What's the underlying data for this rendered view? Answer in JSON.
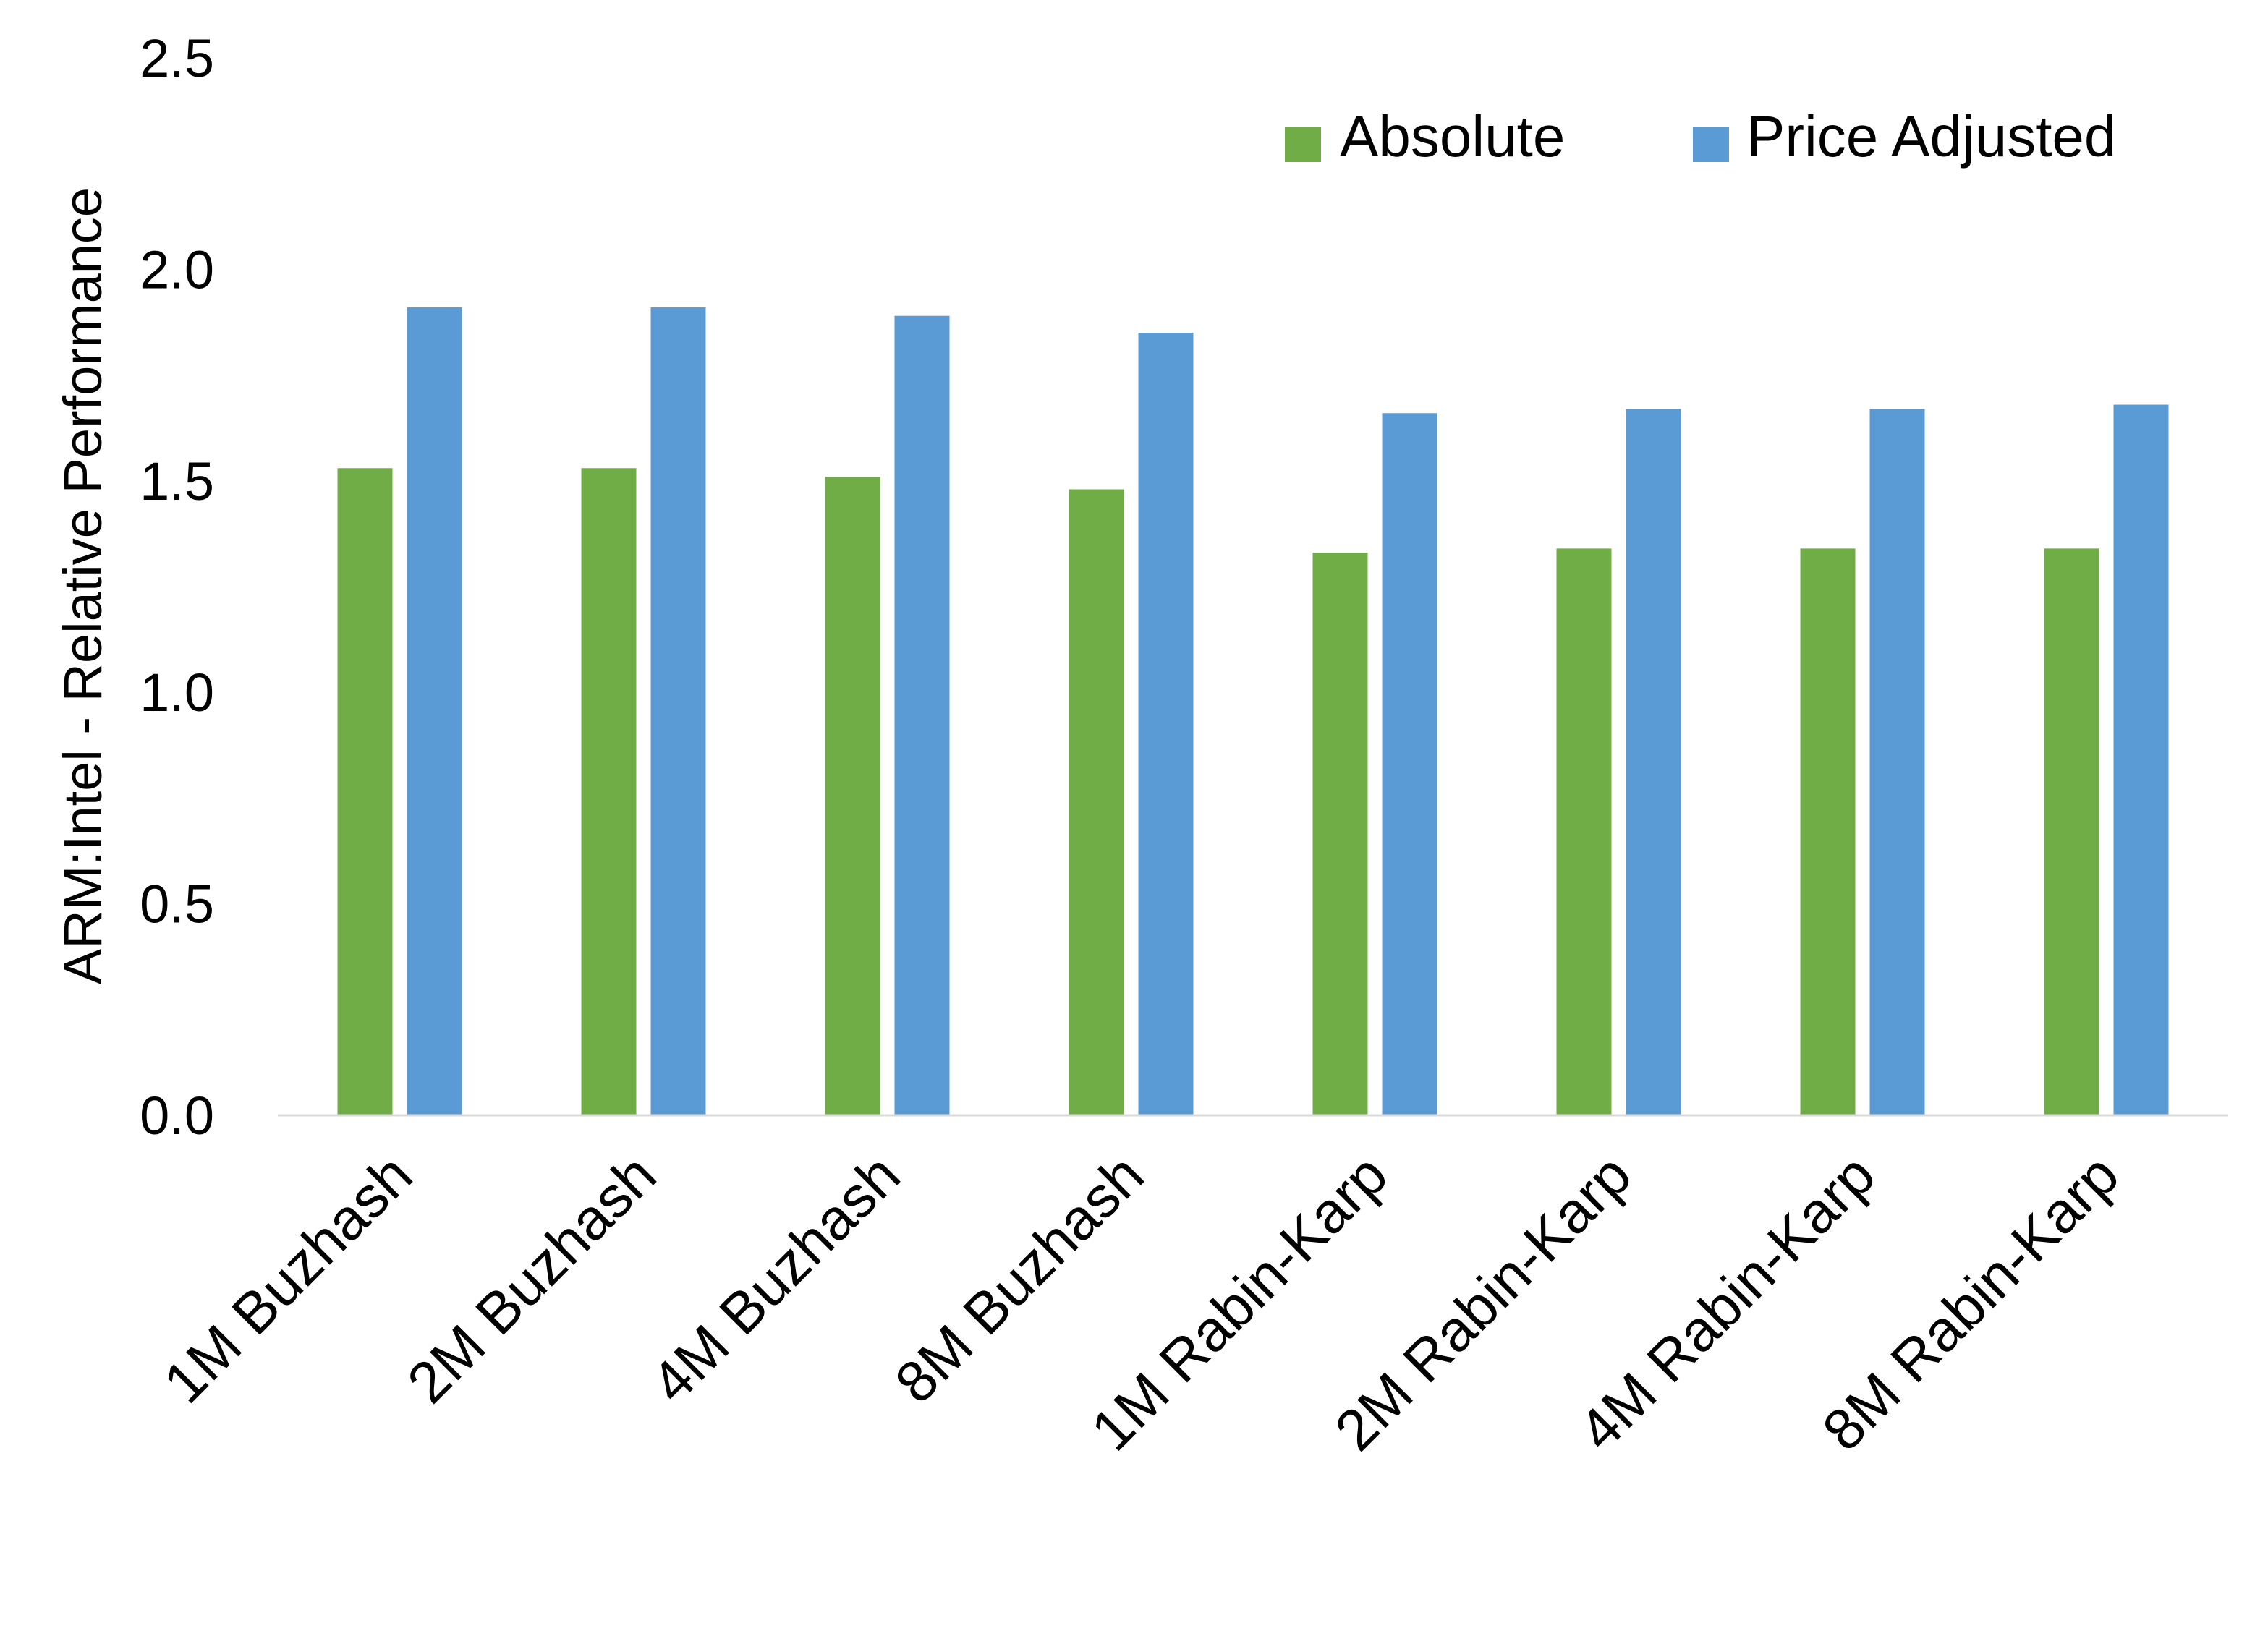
{
  "chart_data": {
    "type": "bar",
    "title": "",
    "xlabel": "",
    "ylabel": "ARM:Intel - Relative Performance",
    "ylim": [
      0,
      2.5
    ],
    "yticks": [
      "0.0",
      "0.5",
      "1.0",
      "1.5",
      "2.0",
      "2.5"
    ],
    "grid": false,
    "legend_position": "top-right",
    "categories": [
      "1M Buzhash",
      "2M Buzhash",
      "4M Buzhash",
      "8M Buzhash",
      "1M Rabin-Karp",
      "2M Rabin-Karp",
      "4M Rabin-Karp",
      "8M Rabin-Karp"
    ],
    "series": [
      {
        "name": "Absolute",
        "color": "#70AD47",
        "values": [
          1.53,
          1.53,
          1.51,
          1.48,
          1.33,
          1.34,
          1.34,
          1.34
        ]
      },
      {
        "name": "Price Adjusted",
        "color": "#5B9BD5",
        "values": [
          1.91,
          1.91,
          1.89,
          1.85,
          1.66,
          1.67,
          1.67,
          1.68
        ]
      }
    ]
  }
}
